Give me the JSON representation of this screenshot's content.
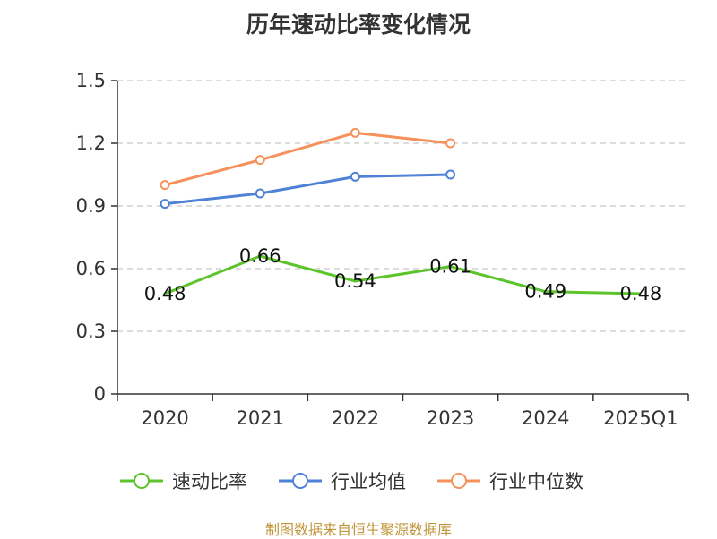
{
  "title": "历年速动比率变化情况",
  "source": "制图数据来自恒生聚源数据库",
  "colors": {
    "axis": "#333333",
    "grid": "#c8c8c8"
  },
  "chart_data": {
    "type": "line",
    "title": "历年速动比率变化情况",
    "categories": [
      "2020",
      "2021",
      "2022",
      "2023",
      "2024",
      "2025Q1"
    ],
    "y_ticks": [
      "0",
      "0.3",
      "0.6",
      "0.9",
      "1.2",
      "1.5"
    ],
    "ylim": [
      0,
      1.5
    ],
    "grid": "horizontal dashed",
    "legend_position": "bottom",
    "series": [
      {
        "name": "速动比率",
        "color": "#5cc32a",
        "markers": false,
        "show_labels": true,
        "values": [
          0.48,
          0.66,
          0.54,
          0.61,
          0.49,
          0.48
        ],
        "labels": [
          "0.48",
          "0.66",
          "0.54",
          "0.61",
          "0.49",
          "0.48"
        ]
      },
      {
        "name": "行业均值",
        "color": "#4f82d6",
        "markers": true,
        "show_labels": false,
        "values": [
          0.91,
          0.96,
          1.04,
          1.05,
          null,
          null
        ]
      },
      {
        "name": "行业中位数",
        "color": "#f5915a",
        "markers": true,
        "show_labels": false,
        "values": [
          1.0,
          1.12,
          1.25,
          1.2,
          null,
          null
        ]
      }
    ]
  }
}
